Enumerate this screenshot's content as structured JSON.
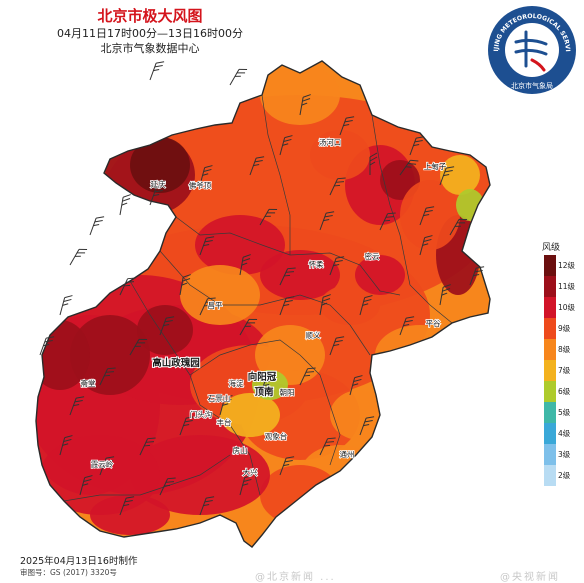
{
  "title": "北京市极大风图",
  "subtitle_period": "04月11日17时00分—13日16时00分",
  "subtitle_agency": "北京市气象数据中心",
  "logo": {
    "text_arc": "BEIJING METEOROLOGICAL SERVICE",
    "text_cn": "北京市气象局",
    "ring_color": "#1d4f91",
    "emblem": "meteorology-emblem"
  },
  "legend": {
    "title": "风级",
    "items": [
      {
        "label": "12级",
        "color": "#6b0f0f"
      },
      {
        "label": "11级",
        "color": "#9c0f1a"
      },
      {
        "label": "10级",
        "color": "#d21428"
      },
      {
        "label": "9级",
        "color": "#ee4a1c"
      },
      {
        "label": "8级",
        "color": "#f7861c"
      },
      {
        "label": "7级",
        "color": "#f3b21e"
      },
      {
        "label": "6级",
        "color": "#aecb2c"
      },
      {
        "label": "5级",
        "color": "#3fb8a8"
      },
      {
        "label": "4级",
        "color": "#3aa8d8"
      },
      {
        "label": "3级",
        "color": "#7ec0ea"
      },
      {
        "label": "2级",
        "color": "#b8dcf3"
      }
    ]
  },
  "places": [
    {
      "name": "延庆"
    },
    {
      "name": "佛爷顶"
    },
    {
      "name": "汤河口"
    },
    {
      "name": "上甸子"
    },
    {
      "name": "怀柔"
    },
    {
      "name": "密云"
    },
    {
      "name": "昌平"
    },
    {
      "name": "顺义"
    },
    {
      "name": "平谷"
    },
    {
      "name": "霞云岭"
    },
    {
      "name": "斋堂"
    },
    {
      "name": "高山政瑰园"
    },
    {
      "name": "海淀"
    },
    {
      "name": "石景山"
    },
    {
      "name": "门头沟"
    },
    {
      "name": "丰台"
    },
    {
      "name": "朝阳"
    },
    {
      "name": "向阳冠"
    },
    {
      "name": "顶南"
    },
    {
      "name": "观象台"
    },
    {
      "name": "通州"
    },
    {
      "name": "房山"
    },
    {
      "name": "大兴"
    }
  ],
  "map_colors": {
    "boundary": "#3a3a3a",
    "outside": "#ffffff"
  },
  "footer": {
    "made": "2025年04月13日16时制作",
    "review": "审图号：GS (2017) 3320号"
  },
  "watermark": "@北京新闻 ...",
  "watermark2": "@央视新闻"
}
